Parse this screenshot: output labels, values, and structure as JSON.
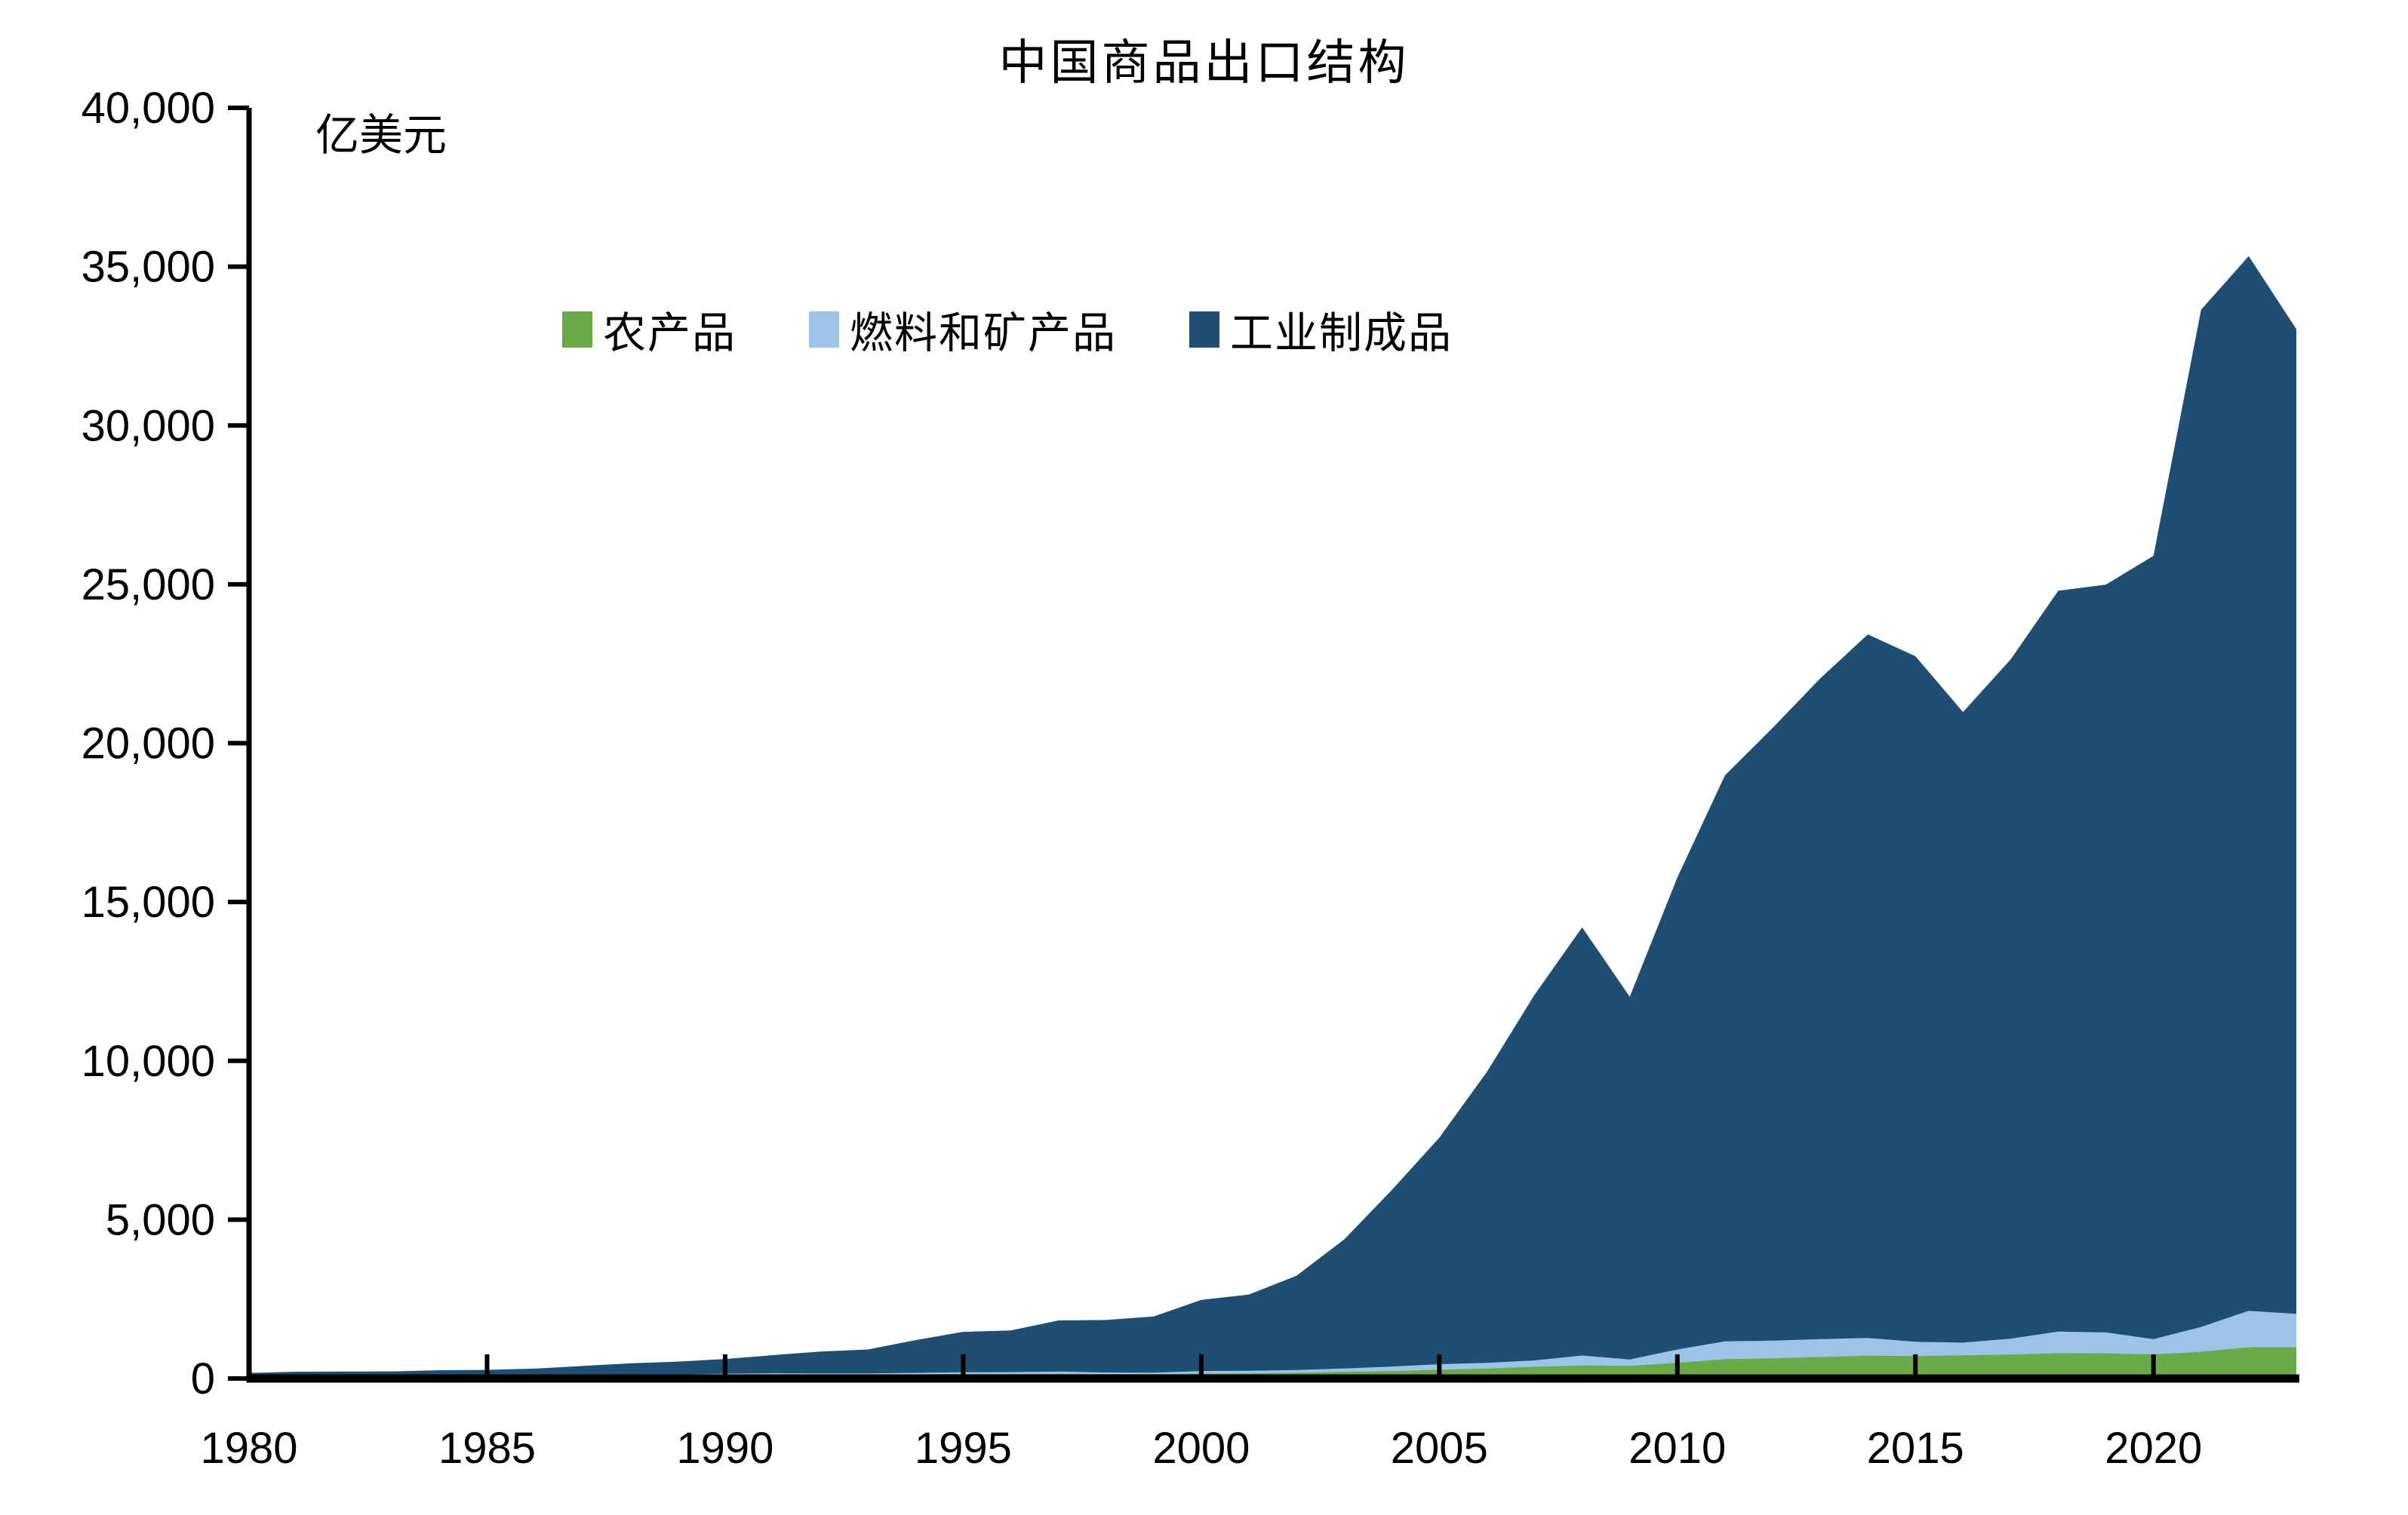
{
  "title": "中国商品出口结构",
  "unit_label": "亿美元",
  "colors": {
    "agricultural": "#6BAB47",
    "fuels_minerals": "#9DC3E6",
    "manufactured": "#1F4E74",
    "axis": "#000000",
    "background": "#FFFFFF"
  },
  "legend": {
    "position": "top",
    "items": [
      {
        "id": "agricultural-products",
        "label": "农产品",
        "color": "#6BAB47"
      },
      {
        "id": "fuels-and-mining-products",
        "label": "燃料和矿产品",
        "color": "#9DC3E6"
      },
      {
        "id": "manufactured-goods",
        "label": "工业制成品",
        "color": "#1F4E74"
      }
    ]
  },
  "chart_data": {
    "type": "area",
    "stacked": true,
    "title": "中国商品出口结构",
    "xlabel": "",
    "ylabel": "亿美元",
    "grid": false,
    "legend_position": "top",
    "ylim": [
      0,
      40000
    ],
    "ytick_step": 5000,
    "ytick_values": [
      0,
      5000,
      10000,
      15000,
      20000,
      25000,
      30000,
      35000,
      40000
    ],
    "ytick_labels": [
      "0",
      "5,000",
      "10,000",
      "15,000",
      "20,000",
      "25,000",
      "30,000",
      "35,000",
      "40,000"
    ],
    "xtick_values": [
      1980,
      1985,
      1990,
      1995,
      2000,
      2005,
      2010,
      2015,
      2020
    ],
    "xtick_labels": [
      "1980",
      "1985",
      "1990",
      "1995",
      "2000",
      "2005",
      "2010",
      "2015",
      "2020"
    ],
    "xlim": [
      1980,
      2023
    ],
    "x": [
      1980,
      1981,
      1982,
      1983,
      1984,
      1985,
      1986,
      1987,
      1988,
      1989,
      1990,
      1991,
      1992,
      1993,
      1994,
      1995,
      1996,
      1997,
      1998,
      1999,
      2000,
      2001,
      2002,
      2003,
      2004,
      2005,
      2006,
      2007,
      2008,
      2009,
      2010,
      2011,
      2012,
      2013,
      2014,
      2015,
      2016,
      2017,
      2018,
      2019,
      2020,
      2021,
      2022,
      2023
    ],
    "series": [
      {
        "id": "agricultural-products",
        "name": "农产品",
        "color": "#6BAB47",
        "values": [
          40,
          44,
          42,
          44,
          48,
          52,
          60,
          66,
          75,
          80,
          100,
          110,
          113,
          115,
          130,
          144,
          143,
          150,
          140,
          137,
          157,
          160,
          180,
          212,
          233,
          275,
          314,
          370,
          405,
          396,
          494,
          608,
          633,
          678,
          719,
          706,
          730,
          755,
          797,
          791,
          760,
          843,
          982,
          985
        ]
      },
      {
        "id": "fuels-and-mining-products",
        "name": "燃料和矿产品",
        "color": "#9DC3E6",
        "values": [
          45,
          52,
          55,
          53,
          60,
          70,
          40,
          46,
          46,
          43,
          52,
          55,
          46,
          45,
          48,
          53,
          59,
          69,
          51,
          46,
          78,
          84,
          85,
          103,
          145,
          176,
          178,
          199,
          318,
          204,
          420,
          560,
          560,
          560,
          555,
          450,
          400,
          500,
          680,
          660,
          480,
          780,
          1150,
          1050
        ]
      },
      {
        "id": "manufactured-goods",
        "name": "工业制成品",
        "color": "#1F4E74",
        "values": [
          90,
          118,
          122,
          126,
          152,
          150,
          212,
          282,
          355,
          408,
          462,
          570,
          690,
          755,
          1030,
          1273,
          1310,
          1610,
          1650,
          1770,
          2240,
          2400,
          2970,
          4060,
          5550,
          7130,
          9160,
          11510,
          13480,
          11420,
          14860,
          17820,
          19290,
          20800,
          22150,
          21580,
          19850,
          21380,
          23320,
          23540,
          24660,
          32020,
          33200,
          31000
        ]
      }
    ]
  }
}
